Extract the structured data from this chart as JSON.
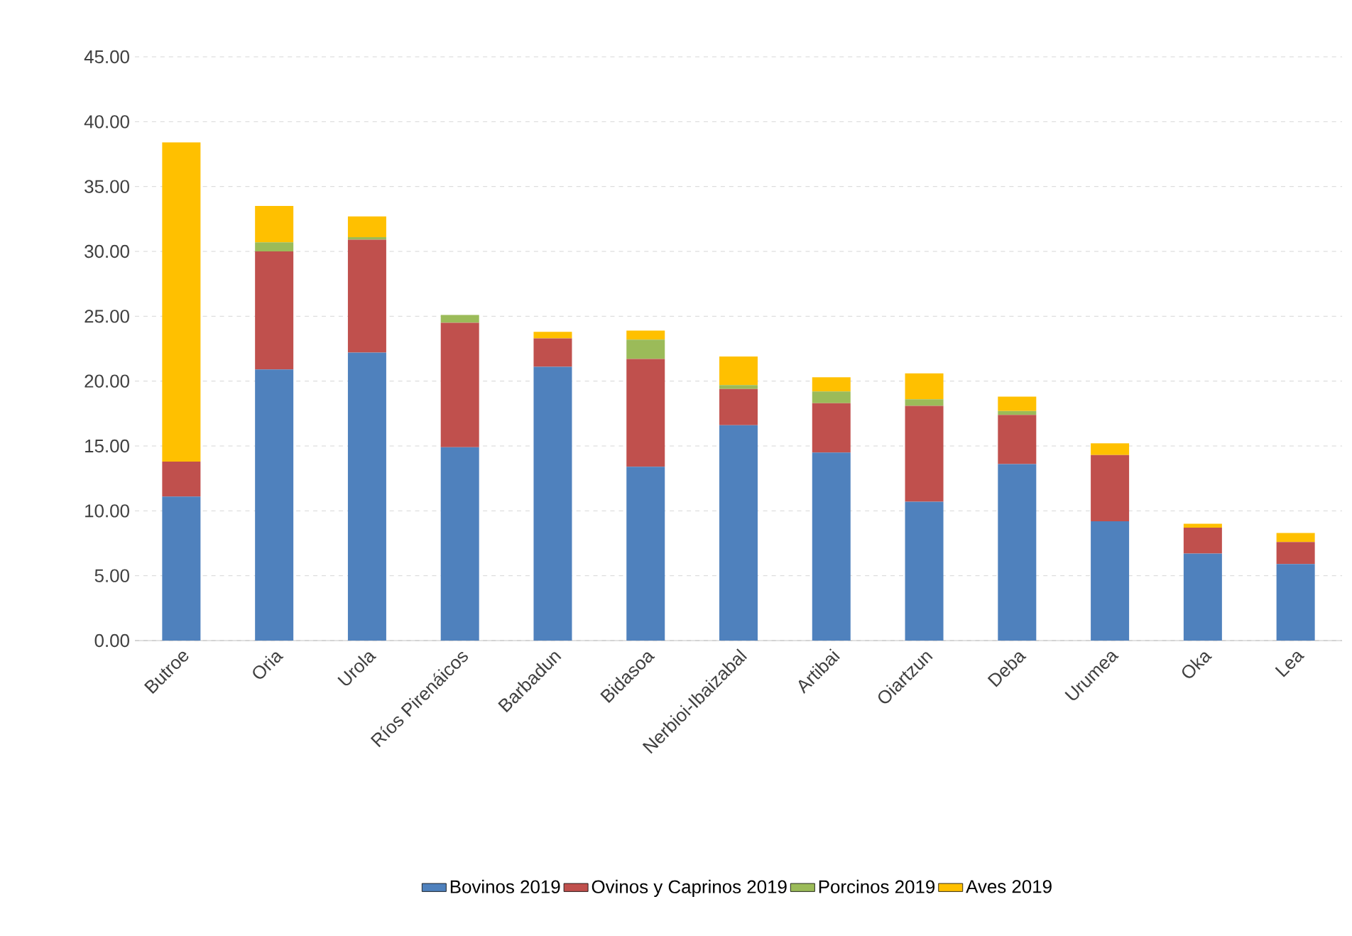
{
  "chart_data": {
    "type": "bar",
    "stacked": true,
    "categories": [
      "Butroe",
      "Oria",
      "Urola",
      "Ríos Pirenáicos",
      "Barbadun",
      "Bidasoa",
      "Nerbioi-Ibaizabal",
      "Artibai",
      "Oiartzun",
      "Deba",
      "Urumea",
      "Oka",
      "Lea"
    ],
    "series": [
      {
        "name": "Bovinos 2019",
        "color": "#4f81bd",
        "values": [
          11.1,
          20.9,
          22.2,
          14.9,
          21.1,
          13.4,
          16.6,
          14.5,
          10.7,
          13.6,
          9.2,
          6.7,
          5.9
        ]
      },
      {
        "name": "Ovinos y Caprinos 2019",
        "color": "#c0504d",
        "values": [
          2.7,
          9.1,
          8.7,
          9.6,
          2.2,
          8.3,
          2.8,
          3.8,
          7.4,
          3.8,
          5.1,
          2.0,
          1.7
        ]
      },
      {
        "name": "Porcinos 2019",
        "color": "#9bbb59",
        "values": [
          0,
          0.7,
          0.2,
          0.6,
          0,
          1.5,
          0.3,
          0.9,
          0.5,
          0.3,
          0,
          0,
          0
        ]
      },
      {
        "name": "Aves 2019",
        "color": "#ffc000",
        "values": [
          24.6,
          2.8,
          1.6,
          0,
          0.5,
          0.7,
          2.2,
          1.1,
          2.0,
          1.1,
          0.9,
          0.3,
          0.7
        ]
      }
    ],
    "ylim": [
      0,
      45
    ],
    "yticks": [
      {
        "value": 0,
        "label": "0.00"
      },
      {
        "value": 5,
        "label": "5.00"
      },
      {
        "value": 10,
        "label": "10.00"
      },
      {
        "value": 15,
        "label": "15.00"
      },
      {
        "value": 20,
        "label": "20.00"
      },
      {
        "value": 25,
        "label": "25.00"
      },
      {
        "value": 30,
        "label": "30.00"
      },
      {
        "value": 35,
        "label": "35.00"
      },
      {
        "value": 40,
        "label": "40.00"
      },
      {
        "value": 45,
        "label": "45.00"
      }
    ],
    "grid": "y",
    "legend": "bottom"
  }
}
